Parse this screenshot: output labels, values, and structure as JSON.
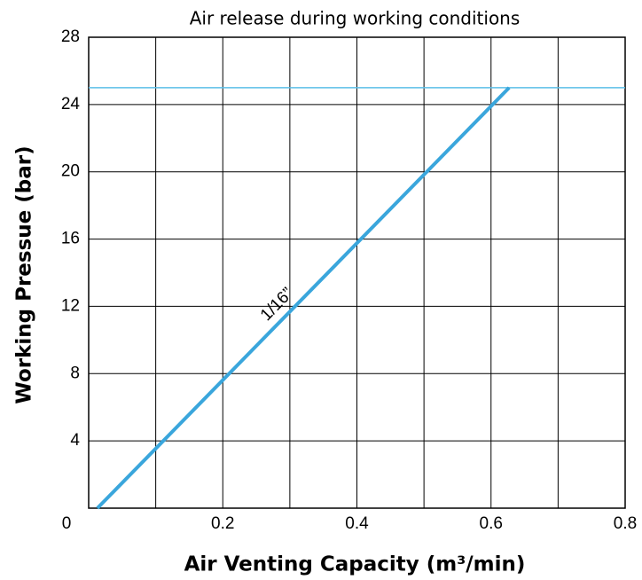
{
  "chart_data": {
    "type": "line",
    "title": "Air release during working conditions",
    "x_label": "Air Venting Capacity (m³/min)",
    "y_label": "Working Pressue (bar)",
    "x": [
      0.013,
      0.627
    ],
    "series": [
      {
        "name": "1/16”",
        "color": "#3aa6dc",
        "values": [
          0,
          25
        ]
      }
    ],
    "reference_line": {
      "value": 25,
      "color": "#5bbfe8"
    },
    "xlim": [
      0,
      0.8
    ],
    "xticks": [
      0,
      0.2,
      0.4,
      0.6,
      0.8
    ],
    "x_minor_ticks": [
      0.1,
      0.3,
      0.5,
      0.7
    ],
    "ylim": [
      0,
      28
    ],
    "yticks": [
      4,
      8,
      12,
      16,
      20,
      24,
      28
    ],
    "grid": true
  }
}
